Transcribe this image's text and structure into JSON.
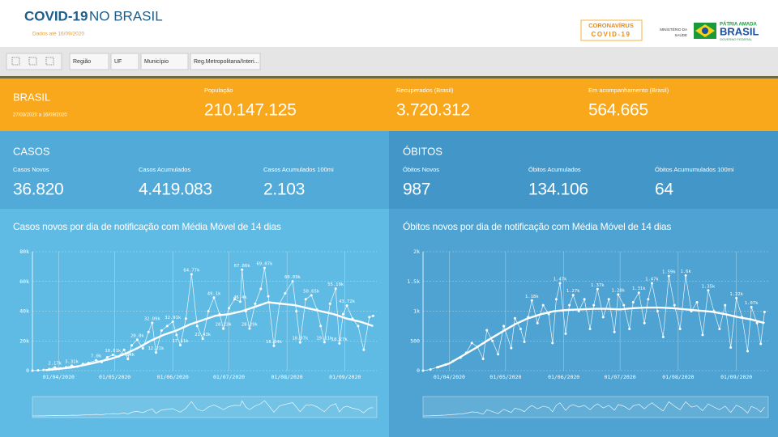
{
  "header": {
    "title_bold": "COVID-19",
    "title_rest": "NO BRASIL",
    "subtitle": "Dados até 16/09/2020",
    "logo1_top": "CORONAVÍRUS",
    "logo1_bottom": "COVID-19",
    "ministry_top": "MINISTÉRIO DA",
    "ministry_bottom": "SAÚDE",
    "gov_top": "PÁTRIA AMADA",
    "gov_main": "BRASIL",
    "gov_bottom": "GOVERNO FEDERAL"
  },
  "filters": [
    "Região",
    "UF",
    "Município",
    "Reg.Metropolitana/Interi..."
  ],
  "summary": {
    "name": "BRASIL",
    "period": "27/03/2020 a 16/09/2020",
    "items": [
      {
        "label": "População",
        "value": "210.147.125"
      },
      {
        "label": "Recuperados (Brasil)",
        "value": "3.720.312"
      },
      {
        "label": "Em acompanhamento (Brasil)",
        "value": "564.665"
      }
    ]
  },
  "casos": {
    "title": "CASOS",
    "items": [
      {
        "label": "Casos Novos",
        "value": "36.820"
      },
      {
        "label": "Casos Acumulados",
        "value": "4.419.083"
      },
      {
        "label": "Casos Acumulados 100mi",
        "value": "2.103"
      }
    ]
  },
  "obitos": {
    "title": "ÓBITOS",
    "items": [
      {
        "label": "Óbitos Novos",
        "value": "987"
      },
      {
        "label": "Óbitos Acumulados",
        "value": "134.106"
      },
      {
        "label": "Óbitos Acumumulados 100mi",
        "value": "64"
      }
    ]
  },
  "chart_data": [
    {
      "type": "line",
      "title": "Casos novos por dia de notificação com Média Móvel de 14 dias",
      "xlim": [
        78,
        262
      ],
      "xticks": [
        {
          "value": 92,
          "label": "01/04/2020"
        },
        {
          "value": 122,
          "label": "01/05/2020"
        },
        {
          "value": 153,
          "label": "01/06/2020"
        },
        {
          "value": 183,
          "label": "01/07/2020"
        },
        {
          "value": 214,
          "label": "01/08/2020"
        },
        {
          "value": 245,
          "label": "01/09/2020"
        }
      ],
      "ylim": [
        0,
        80000
      ],
      "yticks": [
        0,
        {
          "value": 20000,
          "label": "20k"
        },
        {
          "value": 40000,
          "label": "40k"
        },
        {
          "value": 60000,
          "label": "60k"
        },
        {
          "value": 80000,
          "label": "80k"
        }
      ],
      "grid": true,
      "series": [
        {
          "color": "#ffffff",
          "markers": true,
          "x": [
            78,
            81,
            84,
            87,
            90,
            93,
            96,
            99,
            102,
            105,
            108,
            112,
            115,
            118,
            121,
            124,
            127,
            129,
            131,
            134,
            137,
            140,
            142,
            144,
            147,
            150,
            153,
            155,
            157,
            160,
            163,
            166,
            169,
            172,
            175,
            178,
            180,
            183,
            186,
            189,
            190,
            192,
            194,
            197,
            200,
            202,
            204,
            207,
            210,
            213,
            217,
            219,
            221,
            224,
            227,
            230,
            232,
            234,
            237,
            240,
            242,
            244,
            246,
            249,
            252,
            255,
            258,
            260
          ],
          "values": [
            0,
            200,
            500,
            1100,
            2170,
            1500,
            2300,
            3310,
            2800,
            4500,
            5200,
            7000,
            5800,
            9000,
            10610,
            9500,
            14000,
            7840,
            17000,
            20800,
            15000,
            26000,
            32090,
            12210,
            27000,
            30000,
            32910,
            24000,
            17110,
            35000,
            64770,
            30000,
            21430,
            40000,
            49100,
            38000,
            28230,
            42000,
            48000,
            46400,
            67860,
            40000,
            28290,
            45000,
            55000,
            69070,
            50000,
            16640,
            45000,
            52000,
            60090,
            40000,
            18970,
            48000,
            50650,
            41000,
            30000,
            19110,
            45000,
            55190,
            18270,
            38000,
            43720,
            35000,
            30000,
            14000,
            36000,
            36820
          ],
          "value_labels": [
            null,
            null,
            null,
            null,
            "2.17k",
            null,
            null,
            "3.31k",
            null,
            null,
            null,
            "7.0k",
            null,
            null,
            "10.61k",
            null,
            null,
            "7.84k",
            null,
            "20.8k",
            null,
            null,
            "32.09k",
            "12.21k",
            null,
            null,
            "32.91k",
            null,
            "17.11k",
            null,
            "64.77k",
            null,
            "21.43k",
            null,
            "49.1k",
            null,
            "28.23k",
            null,
            null,
            "46.4k",
            "67.86k",
            null,
            "28.29k",
            null,
            null,
            "69.07k",
            null,
            "16.64k",
            null,
            null,
            "60.09k",
            null,
            "18.97k",
            null,
            "50.65k",
            null,
            null,
            "19.11k",
            null,
            "55.19k",
            "18.27k",
            null,
            "43.72k",
            null,
            null,
            null,
            null,
            null
          ]
        },
        {
          "color": "#ffffff",
          "markers": false,
          "x": [
            85,
            92,
            99,
            106,
            113,
            120,
            127,
            134,
            141,
            148,
            155,
            162,
            169,
            176,
            183,
            190,
            197,
            204,
            211,
            218,
            225,
            232,
            239,
            246,
            253,
            260
          ],
          "values": [
            300,
            1200,
            2200,
            3800,
            5800,
            8000,
            11000,
            15000,
            20000,
            24000,
            27000,
            31000,
            34000,
            37000,
            38000,
            40000,
            43000,
            46000,
            45000,
            44000,
            42000,
            40000,
            38000,
            35000,
            33000,
            30000
          ]
        }
      ]
    },
    {
      "type": "line",
      "title": "Óbitos novos por dia de notificação com Média Móvel de 14 dias",
      "xlim": [
        78,
        262
      ],
      "xticks": [
        {
          "value": 92,
          "label": "01/04/2020"
        },
        {
          "value": 122,
          "label": "01/05/2020"
        },
        {
          "value": 153,
          "label": "01/06/2020"
        },
        {
          "value": 183,
          "label": "01/07/2020"
        },
        {
          "value": 214,
          "label": "01/08/2020"
        },
        {
          "value": 245,
          "label": "01/09/2020"
        }
      ],
      "ylim": [
        0,
        2000
      ],
      "yticks": [
        0,
        500,
        {
          "value": 1000,
          "label": "1k"
        },
        {
          "value": 1500,
          "label": "1.5k"
        },
        {
          "value": 2000,
          "label": "2k"
        }
      ],
      "grid": true,
      "series": [
        {
          "color": "#ffffff",
          "markers": true,
          "x": [
            78,
            82,
            86,
            90,
            94,
            98,
            101,
            104,
            107,
            110,
            112,
            115,
            118,
            121,
            125,
            127,
            130,
            132,
            134,
            136,
            139,
            142,
            145,
            147,
            149,
            151,
            154,
            156,
            158,
            161,
            164,
            167,
            169,
            171,
            174,
            177,
            180,
            182,
            185,
            188,
            190,
            193,
            196,
            198,
            200,
            203,
            206,
            209,
            212,
            215,
            218,
            221,
            224,
            227,
            230,
            233,
            236,
            239,
            242,
            245,
            248,
            251,
            253,
            256,
            258,
            260
          ],
          "values": [
            0,
            20,
            60,
            100,
            160,
            220,
            300,
            465,
            400,
            197,
            680,
            500,
            275,
            750,
            380,
            881,
            700,
            485,
            900,
            1180,
            800,
            1100,
            950,
            464,
            1200,
            1470,
            621,
            1100,
            1270,
            1000,
            1200,
            700,
            1100,
            1370,
            900,
            1200,
            650,
            1280,
            1100,
            700,
            1150,
            1310,
            800,
            1200,
            1470,
            1000,
            566,
            1590,
            1100,
            700,
            1600,
            1000,
            1150,
            600,
            1350,
            1000,
            700,
            1100,
            389,
            1220,
            900,
            328,
            1070,
            800,
            450,
            987
          ],
          "value_labels": [
            null,
            null,
            null,
            null,
            null,
            null,
            null,
            null,
            null,
            null,
            null,
            null,
            null,
            null,
            null,
            null,
            null,
            null,
            null,
            "1.18k",
            null,
            null,
            null,
            null,
            null,
            "1.47k",
            null,
            null,
            "1.27k",
            null,
            null,
            null,
            null,
            "1.37k",
            null,
            null,
            null,
            "1.28k",
            null,
            null,
            null,
            "1.31k",
            null,
            null,
            "1.47k",
            null,
            null,
            "1.59k",
            null,
            null,
            "1.6k",
            null,
            null,
            null,
            "1.35k",
            null,
            null,
            null,
            null,
            "1.22k",
            null,
            null,
            "1.07k",
            null,
            null,
            null
          ]
        },
        {
          "color": "#ffffff",
          "markers": false,
          "x": [
            85,
            92,
            99,
            106,
            113,
            120,
            127,
            134,
            141,
            148,
            155,
            162,
            169,
            176,
            183,
            190,
            197,
            204,
            211,
            218,
            225,
            232,
            239,
            246,
            253,
            260
          ],
          "values": [
            50,
            120,
            250,
            380,
            520,
            650,
            780,
            880,
            950,
            1000,
            1020,
            1030,
            1040,
            1040,
            1030,
            1050,
            1060,
            1060,
            1050,
            1030,
            1010,
            990,
            950,
            900,
            860,
            800
          ]
        }
      ]
    }
  ]
}
